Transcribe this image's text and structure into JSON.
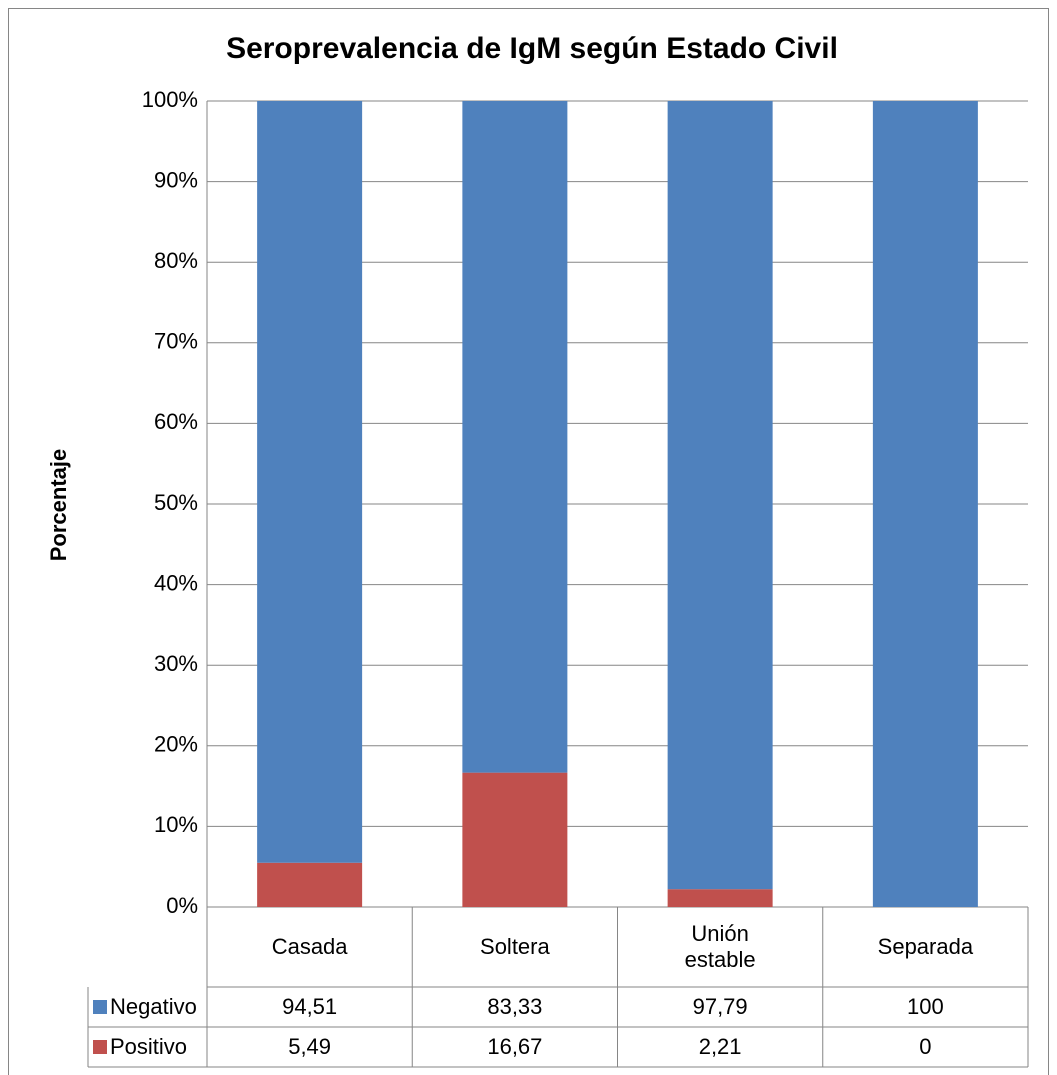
{
  "chart_data": {
    "type": "stacked_bar",
    "title": "Seroprevalencia de IgM según Estado Civil",
    "ylabel": "Porcentaje",
    "categories": [
      "Casada",
      "Soltera",
      "Unión estable",
      "Separada"
    ],
    "series": [
      {
        "name": "Negativo",
        "color": "#4f81bd",
        "values": [
          94.51,
          83.33,
          97.79,
          100
        ],
        "value_labels": [
          "94,51",
          "83,33",
          "97,79",
          "100"
        ]
      },
      {
        "name": "Positivo",
        "color": "#c0504d",
        "values": [
          5.49,
          16.67,
          2.21,
          0
        ],
        "value_labels": [
          "5,49",
          "16,67",
          "2,21",
          "0"
        ]
      }
    ],
    "ylim": [
      0,
      100
    ],
    "yticks": [
      {
        "value": 0,
        "label": "0%"
      },
      {
        "value": 10,
        "label": "10%"
      },
      {
        "value": 20,
        "label": "20%"
      },
      {
        "value": 30,
        "label": "30%"
      },
      {
        "value": 40,
        "label": "40%"
      },
      {
        "value": 50,
        "label": "50%"
      },
      {
        "value": 60,
        "label": "60%"
      },
      {
        "value": 70,
        "label": "70%"
      },
      {
        "value": 80,
        "label": "80%"
      },
      {
        "value": 90,
        "label": "90%"
      },
      {
        "value": 100,
        "label": "100%"
      }
    ],
    "grid": true,
    "data_table": true
  }
}
